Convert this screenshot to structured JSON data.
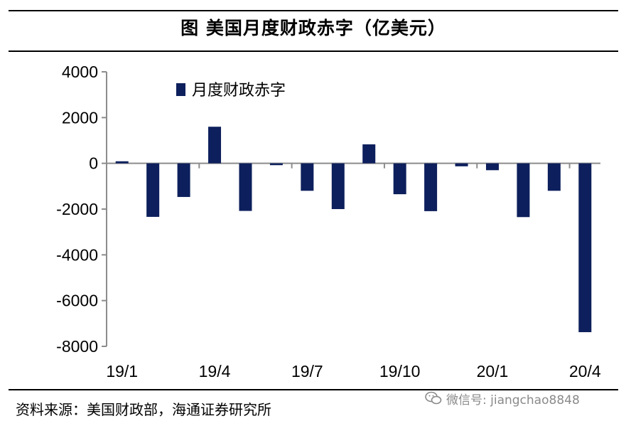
{
  "header": {
    "title": "图  美国月度财政赤字（亿美元）"
  },
  "footer": {
    "source": "资料来源：美国财政部，海通证券研究所",
    "watermark": "微信号: jiangchao8848"
  },
  "chart_data": {
    "type": "bar",
    "title": "图  美国月度财政赤字（亿美元）",
    "xlabel": "",
    "ylabel": "",
    "categories": [
      "19/1",
      "19/2",
      "19/3",
      "19/4",
      "19/5",
      "19/6",
      "19/7",
      "19/8",
      "19/9",
      "19/10",
      "19/11",
      "19/12",
      "20/1",
      "20/2",
      "20/3",
      "20/4"
    ],
    "x_tick_labels": [
      "19/1",
      "19/4",
      "19/7",
      "19/10",
      "20/1",
      "20/4"
    ],
    "series": [
      {
        "name": "月度财政赤字",
        "color": "#0d1f5c",
        "values": [
          90,
          -2340,
          -1470,
          1600,
          -2080,
          -80,
          -1200,
          -2000,
          830,
          -1350,
          -2090,
          -130,
          -300,
          -2350,
          -1200,
          -7380
        ]
      }
    ],
    "ylim": [
      -8000,
      4000
    ],
    "y_ticks": [
      4000,
      2000,
      0,
      -2000,
      -4000,
      -6000,
      -8000
    ],
    "legend": {
      "position": "top-left",
      "label": "月度财政赤字"
    },
    "grid": false
  }
}
